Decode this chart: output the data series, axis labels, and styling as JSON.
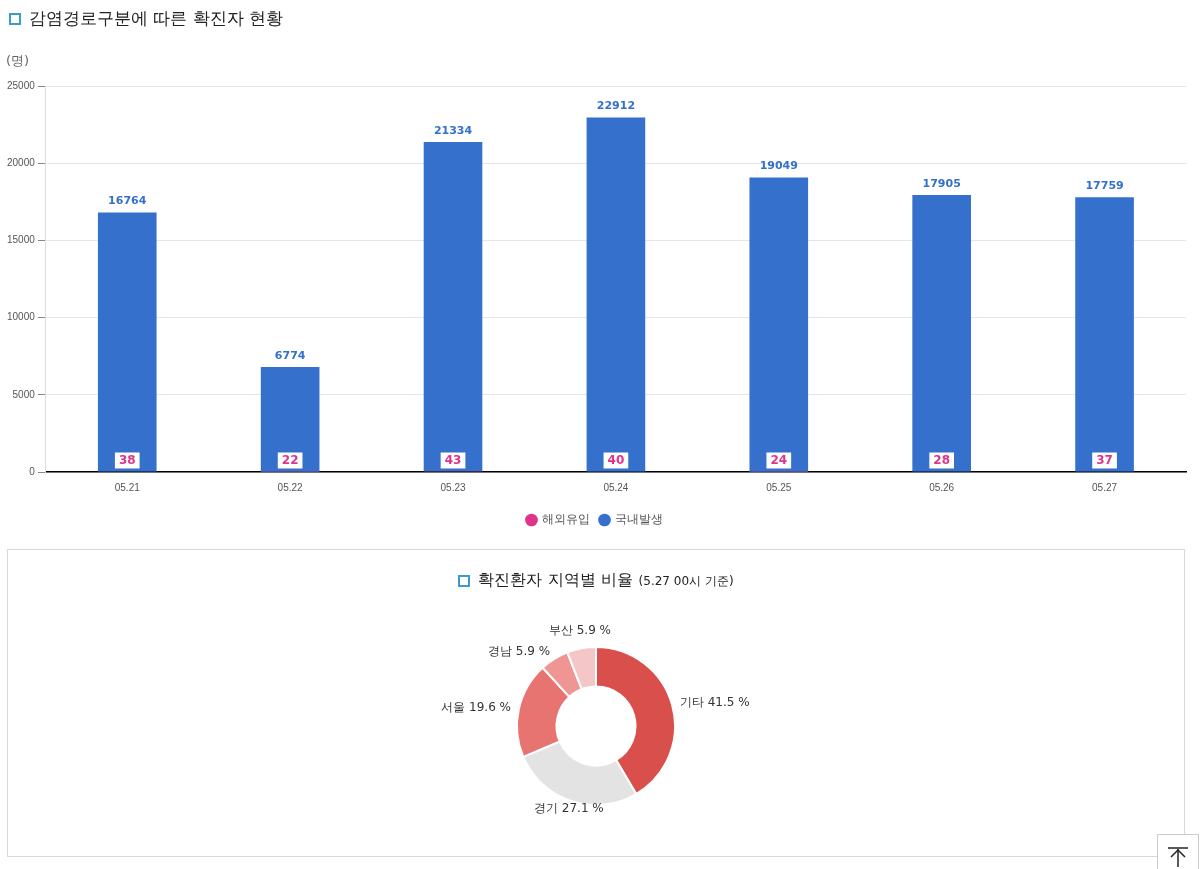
{
  "chart_data": [
    {
      "type": "bar",
      "title": "감염경로구분에 따른 확진자 현황",
      "ylabel": "(명)",
      "categories": [
        "05.21",
        "05.22",
        "05.23",
        "05.24",
        "05.25",
        "05.26",
        "05.27"
      ],
      "series": [
        {
          "name": "해외유입",
          "color": "#e0338a",
          "values": [
            38,
            22,
            43,
            40,
            24,
            28,
            37
          ]
        },
        {
          "name": "국내발생",
          "color": "#3470cc",
          "values": [
            16764,
            6774,
            21334,
            22912,
            19049,
            17905,
            17759
          ]
        }
      ],
      "stacked": true,
      "ylim": [
        0,
        25000
      ],
      "yticks": [
        0,
        5000,
        10000,
        15000,
        20000,
        25000
      ],
      "grid": "y",
      "legend": "bottom",
      "data_labels": true
    },
    {
      "type": "donut",
      "title": "확진환자 지역별 비율",
      "subtitle": "(5.27 00시 기준)",
      "categories": [
        "기타",
        "경기",
        "서울",
        "경남",
        "부산"
      ],
      "values": [
        41.5,
        27.1,
        19.6,
        5.9,
        5.9
      ],
      "colors": [
        "#d94f4b",
        "#e3e3e3",
        "#e87471",
        "#ef9593",
        "#f4c6c8"
      ],
      "value_labels": [
        "41.5 %",
        "27.1 %",
        "19.6 %",
        "5.9 %",
        "5.9 %"
      ]
    }
  ]
}
